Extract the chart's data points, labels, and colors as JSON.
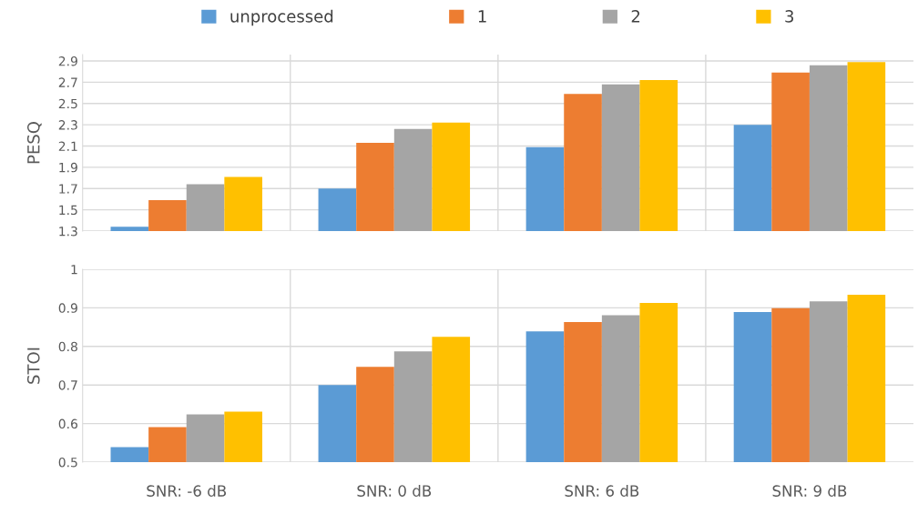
{
  "chart_data": [
    {
      "type": "bar",
      "ylabel": "PESQ",
      "categories": [
        null,
        null,
        null,
        null
      ],
      "series": [
        {
          "name": "unprocessed",
          "color": "#5b9bd5",
          "values": [
            1.34,
            1.7,
            2.09,
            2.3
          ]
        },
        {
          "name": "1",
          "color": "#ed7d31",
          "values": [
            1.59,
            2.13,
            2.59,
            2.79
          ]
        },
        {
          "name": "2",
          "color": "#a5a5a5",
          "values": [
            1.74,
            2.26,
            2.68,
            2.86
          ]
        },
        {
          "name": "3",
          "color": "#ffc000",
          "values": [
            1.81,
            2.32,
            2.72,
            2.89
          ]
        }
      ],
      "ylim": [
        1.3,
        2.96
      ],
      "yticks": [
        1.3,
        1.5,
        1.7,
        1.9,
        2.1,
        2.3,
        2.5,
        2.7,
        2.9
      ],
      "grid": true,
      "legend": "top",
      "tick_labels": "y"
    },
    {
      "type": "bar",
      "ylabel": "STOI",
      "categories": [
        "SNR: -6 dB",
        "SNR: 0 dB",
        "SNR: 6 dB",
        "SNR: 9 dB"
      ],
      "series": [
        {
          "color": "#5b9bd5",
          "values": [
            0.539,
            0.7,
            0.839,
            0.889
          ]
        },
        {
          "color": "#ed7d31",
          "values": [
            0.591,
            0.747,
            0.863,
            0.899
          ]
        },
        {
          "color": "#a5a5a5",
          "values": [
            0.624,
            0.787,
            0.881,
            0.917
          ]
        },
        {
          "color": "#ffc000",
          "values": [
            0.631,
            0.825,
            0.913,
            0.934
          ]
        }
      ],
      "ylim": [
        0.5,
        1
      ],
      "yticks": [
        0.5,
        0.6,
        0.7,
        0.8,
        0.9,
        1
      ],
      "grid": true
    }
  ]
}
